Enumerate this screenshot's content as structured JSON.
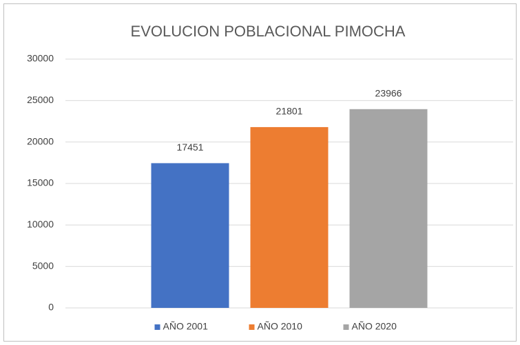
{
  "chart_data": {
    "type": "bar",
    "title": "EVOLUCION POBLACIONAL PIMOCHA",
    "categories": [
      null
    ],
    "series": [
      {
        "name": "AÑO 2001",
        "color": "#4472c4",
        "values": [
          17451
        ]
      },
      {
        "name": "AÑO 2010",
        "color": "#ed7d31",
        "values": [
          21801
        ]
      },
      {
        "name": "AÑO 2020",
        "color": "#a5a5a5",
        "values": [
          23966
        ]
      }
    ],
    "ylim": [
      0,
      30000
    ],
    "yticks": [
      0,
      5000,
      10000,
      15000,
      20000,
      25000,
      30000
    ],
    "grid": true,
    "data_labels": true,
    "legend": "bottom"
  }
}
